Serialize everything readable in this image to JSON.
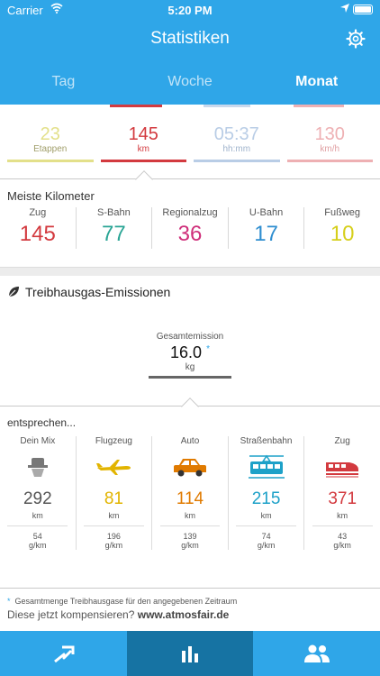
{
  "status_bar": {
    "carrier": "Carrier",
    "time": "5:20 PM"
  },
  "header": {
    "title": "Statistiken"
  },
  "tabs": [
    {
      "label": "Tag",
      "active": false
    },
    {
      "label": "Woche",
      "active": false
    },
    {
      "label": "Monat",
      "active": true
    }
  ],
  "summary": [
    {
      "value": "23",
      "unit": "Etappen",
      "color": "#e3e08a"
    },
    {
      "value": "145",
      "unit": "km",
      "color": "#d33a3f"
    },
    {
      "value": "05:37",
      "unit": "hh:mm",
      "color": "#b9cde6"
    },
    {
      "value": "130",
      "unit": "km/h",
      "color": "#eeb0b3"
    }
  ],
  "meiste": {
    "title": "Meiste Kilometer",
    "items": [
      {
        "label": "Zug",
        "value": "145",
        "color": "#d33a3f"
      },
      {
        "label": "S-Bahn",
        "value": "77",
        "color": "#2aa595"
      },
      {
        "label": "Regionalzug",
        "value": "36",
        "color": "#cf2f7a"
      },
      {
        "label": "U-Bahn",
        "value": "17",
        "color": "#2f8ed0"
      },
      {
        "label": "Fußweg",
        "value": "10",
        "color": "#d6cf1c"
      }
    ]
  },
  "emissions": {
    "title": "Treibhausgas-Emissionen",
    "total_label": "Gesamtemission",
    "total_value": "16.0",
    "total_marker": "*",
    "total_unit": "kg",
    "entsprechen": "entsprechen...",
    "compare": [
      {
        "label": "Dein Mix",
        "value": "292",
        "unit": "km",
        "gram": "54",
        "gram_unit": "g/km",
        "color": "#555555",
        "icon": "person-icon"
      },
      {
        "label": "Flugzeug",
        "value": "81",
        "unit": "km",
        "gram": "196",
        "gram_unit": "g/km",
        "color": "#e2b400",
        "icon": "airplane-icon"
      },
      {
        "label": "Auto",
        "value": "114",
        "unit": "km",
        "gram": "139",
        "gram_unit": "g/km",
        "color": "#e07a00",
        "icon": "car-icon"
      },
      {
        "label": "Straßenbahn",
        "value": "215",
        "unit": "km",
        "gram": "74",
        "gram_unit": "g/km",
        "color": "#1da1c8",
        "icon": "tram-icon"
      },
      {
        "label": "Zug",
        "value": "371",
        "unit": "km",
        "gram": "43",
        "gram_unit": "g/km",
        "color": "#d33a3f",
        "icon": "train-icon"
      }
    ]
  },
  "footer": {
    "note_marker": "*",
    "note": "Gesamtmenge Treibhausgase für den angegebenen Zeitraum",
    "compensate": "Diese jetzt kompensieren?",
    "link": "www.atmosfair.de"
  },
  "bottom_nav": [
    {
      "icon": "transfer-icon",
      "active": false
    },
    {
      "icon": "bar-chart-icon",
      "active": true
    },
    {
      "icon": "people-icon",
      "active": false
    }
  ]
}
